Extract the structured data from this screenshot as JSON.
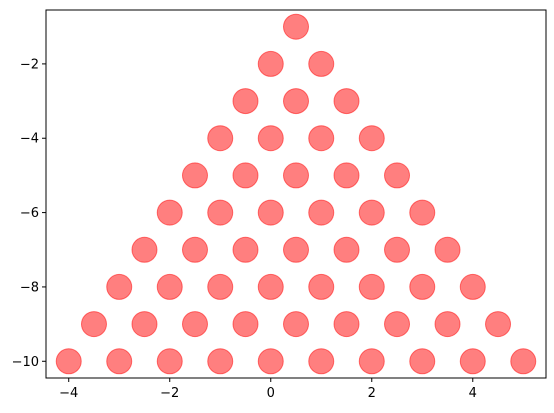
{
  "chart_data": {
    "type": "scatter",
    "title": "",
    "xlabel": "",
    "ylabel": "",
    "xlim": [
      -4.45,
      5.45
    ],
    "ylim": [
      -10.45,
      -0.55
    ],
    "grid": false,
    "marker_color": "#ff0000",
    "marker_alpha": 0.5,
    "x_ticks": [
      -4,
      -2,
      0,
      2,
      4
    ],
    "x_tick_labels": [
      "−4",
      "−2",
      "0",
      "2",
      "4"
    ],
    "y_ticks": [
      -2,
      -4,
      -6,
      -8,
      -10
    ],
    "y_tick_labels": [
      "−2",
      "−4",
      "−6",
      "−8",
      "−10"
    ],
    "points": [
      [
        0.5,
        -1
      ],
      [
        0,
        -2
      ],
      [
        1,
        -2
      ],
      [
        -0.5,
        -3
      ],
      [
        0.5,
        -3
      ],
      [
        1.5,
        -3
      ],
      [
        -1,
        -4
      ],
      [
        0,
        -4
      ],
      [
        1,
        -4
      ],
      [
        2,
        -4
      ],
      [
        -1.5,
        -5
      ],
      [
        -0.5,
        -5
      ],
      [
        0.5,
        -5
      ],
      [
        1.5,
        -5
      ],
      [
        2.5,
        -5
      ],
      [
        -2,
        -6
      ],
      [
        -1,
        -6
      ],
      [
        0,
        -6
      ],
      [
        1,
        -6
      ],
      [
        2,
        -6
      ],
      [
        3,
        -6
      ],
      [
        -2.5,
        -7
      ],
      [
        -1.5,
        -7
      ],
      [
        -0.5,
        -7
      ],
      [
        0.5,
        -7
      ],
      [
        1.5,
        -7
      ],
      [
        2.5,
        -7
      ],
      [
        3.5,
        -7
      ],
      [
        -3,
        -8
      ],
      [
        -2,
        -8
      ],
      [
        -1,
        -8
      ],
      [
        0,
        -8
      ],
      [
        1,
        -8
      ],
      [
        2,
        -8
      ],
      [
        3,
        -8
      ],
      [
        4,
        -8
      ],
      [
        -3.5,
        -9
      ],
      [
        -2.5,
        -9
      ],
      [
        -1.5,
        -9
      ],
      [
        -0.5,
        -9
      ],
      [
        0.5,
        -9
      ],
      [
        1.5,
        -9
      ],
      [
        2.5,
        -9
      ],
      [
        3.5,
        -9
      ],
      [
        4.5,
        -9
      ],
      [
        -4,
        -10
      ],
      [
        -3,
        -10
      ],
      [
        -2,
        -10
      ],
      [
        -1,
        -10
      ],
      [
        0,
        -10
      ],
      [
        1,
        -10
      ],
      [
        2,
        -10
      ],
      [
        3,
        -10
      ],
      [
        4,
        -10
      ],
      [
        5,
        -10
      ]
    ]
  }
}
